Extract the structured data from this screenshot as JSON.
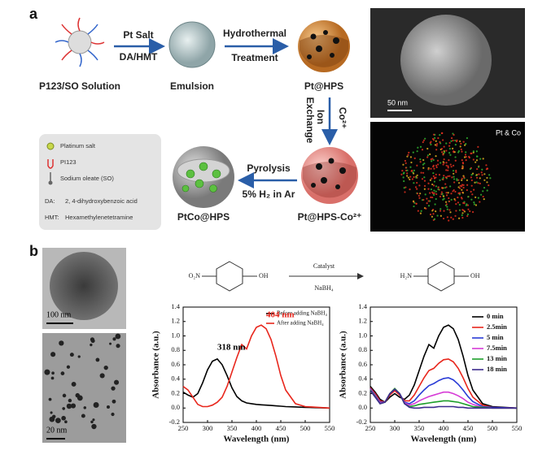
{
  "panel_a": {
    "label": "a",
    "start": "P123/SO Solution",
    "step1_top": "Pt Salt",
    "step1_bottom": "DA/HMT",
    "emulsion": "Emulsion",
    "step2_top": "Hydrothermal",
    "step2_bottom": "Treatment",
    "pt_hps": "Pt@HPS",
    "step3_a": "Ion",
    "step3_b": "Exchange",
    "step3_c": "Co²⁺",
    "pt_hps_co": "Pt@HPS-Co²⁺",
    "step4_top": "Pyrolysis",
    "step4_bottom": "5% H₂ in Ar",
    "ptco_hps": "PtCo@HPS",
    "legend": {
      "platinum": "Platinum salt",
      "p123": "PI123",
      "so": "Sodium oleate (SO)",
      "da_key": "DA:",
      "da": "2, 4-dihydroxybenzoic acid",
      "hmt_key": "HMT:",
      "hmt": "Hexamethylenetetramine"
    },
    "sem_scale": "50 nm",
    "map_label": "Pt & Co"
  },
  "panel_b": {
    "label": "b",
    "tem1_scale": "100 nm",
    "tem2_scale": "20 nm",
    "reaction": {
      "reactant_left": "O₂N",
      "reactant_right": "OH",
      "catalyst": "Catalyst",
      "reagent": "NaBH₄",
      "product_left": "H₂N",
      "product_right": "OH"
    }
  },
  "chart_data": [
    {
      "type": "line",
      "x_label": "Wavelength (nm)",
      "y_label": "Absorbance (a.u.)",
      "x": [
        250,
        260,
        270,
        280,
        290,
        300,
        310,
        320,
        330,
        340,
        350,
        360,
        370,
        380,
        390,
        400,
        410,
        420,
        430,
        440,
        450,
        460,
        480,
        500,
        550
      ],
      "series": [
        {
          "name": "Before adding NaBH₄",
          "color": "#000000",
          "values": [
            0.22,
            0.18,
            0.15,
            0.2,
            0.35,
            0.53,
            0.65,
            0.68,
            0.6,
            0.45,
            0.28,
            0.16,
            0.1,
            0.07,
            0.06,
            0.05,
            0.045,
            0.04,
            0.035,
            0.03,
            0.025,
            0.02,
            0.015,
            0.01,
            0.0
          ]
        },
        {
          "name": "After adding NaBH₄",
          "color": "#e8261c",
          "values": [
            0.3,
            0.25,
            0.15,
            0.05,
            0.02,
            0.02,
            0.04,
            0.08,
            0.15,
            0.3,
            0.5,
            0.7,
            0.88,
            0.82,
            1.0,
            1.12,
            1.15,
            1.1,
            0.95,
            0.72,
            0.45,
            0.25,
            0.06,
            0.02,
            0.0
          ]
        }
      ],
      "annotations": [
        "318 nm",
        "404 nm"
      ],
      "xlim": [
        250,
        550
      ],
      "ylim": [
        -0.2,
        1.4
      ],
      "xticks": [
        250,
        300,
        350,
        400,
        450,
        500,
        550
      ],
      "yticks": [
        -0.2,
        {
          "value": 0,
          "label": "0.0"
        },
        0.2,
        0.4,
        0.6,
        0.8,
        {
          "value": 1,
          "label": "1.0"
        },
        1.2,
        1.4
      ]
    },
    {
      "type": "line",
      "x_label": "Wavelength (nm)",
      "y_label": "Absorbance (a.u.)",
      "x": [
        250,
        260,
        270,
        280,
        290,
        300,
        310,
        320,
        330,
        340,
        350,
        360,
        370,
        380,
        390,
        400,
        410,
        420,
        430,
        440,
        450,
        460,
        480,
        500,
        550
      ],
      "series": [
        {
          "name": "0  min",
          "color": "#000000",
          "values": [
            0.3,
            0.22,
            0.12,
            0.08,
            0.15,
            0.2,
            0.15,
            0.12,
            0.18,
            0.32,
            0.52,
            0.72,
            0.88,
            0.83,
            1.0,
            1.12,
            1.15,
            1.1,
            0.95,
            0.72,
            0.45,
            0.25,
            0.06,
            0.02,
            0.0
          ]
        },
        {
          "name": "2.5min",
          "color": "#e8261c",
          "values": [
            0.28,
            0.2,
            0.1,
            0.08,
            0.18,
            0.24,
            0.18,
            0.1,
            0.1,
            0.18,
            0.3,
            0.42,
            0.52,
            0.55,
            0.62,
            0.67,
            0.68,
            0.64,
            0.55,
            0.42,
            0.27,
            0.15,
            0.04,
            0.01,
            0.0
          ]
        },
        {
          "name": "5  min",
          "color": "#2a3cd6",
          "values": [
            0.27,
            0.18,
            0.08,
            0.08,
            0.2,
            0.26,
            0.2,
            0.08,
            0.06,
            0.1,
            0.18,
            0.25,
            0.31,
            0.34,
            0.38,
            0.41,
            0.42,
            0.39,
            0.33,
            0.25,
            0.16,
            0.09,
            0.02,
            0.01,
            0.0
          ]
        },
        {
          "name": "7.5min",
          "color": "#d63bd6",
          "values": [
            0.26,
            0.17,
            0.07,
            0.08,
            0.2,
            0.27,
            0.2,
            0.07,
            0.04,
            0.06,
            0.1,
            0.13,
            0.16,
            0.18,
            0.2,
            0.22,
            0.22,
            0.2,
            0.17,
            0.13,
            0.08,
            0.05,
            0.01,
            0.0,
            0.0
          ]
        },
        {
          "name": "13 min",
          "color": "#1c9e2a",
          "values": [
            0.25,
            0.16,
            0.06,
            0.08,
            0.2,
            0.27,
            0.2,
            0.06,
            0.02,
            0.03,
            0.05,
            0.06,
            0.07,
            0.08,
            0.09,
            0.1,
            0.1,
            0.09,
            0.08,
            0.06,
            0.04,
            0.02,
            0.01,
            0.0,
            0.0
          ]
        },
        {
          "name": "18 min",
          "color": "#3c2a8e",
          "values": [
            0.24,
            0.15,
            0.06,
            0.08,
            0.2,
            0.26,
            0.2,
            0.06,
            0.01,
            0.0,
            0.0,
            0.01,
            0.01,
            0.01,
            0.02,
            0.02,
            0.02,
            0.02,
            0.01,
            0.01,
            0.0,
            0.0,
            0.0,
            0.0,
            0.0
          ]
        }
      ],
      "xlim": [
        250,
        550
      ],
      "ylim": [
        -0.2,
        1.4
      ],
      "xticks": [
        250,
        300,
        350,
        400,
        450,
        500,
        550
      ],
      "yticks": [
        -0.2,
        {
          "value": 0,
          "label": "0.0"
        },
        0.2,
        0.4,
        0.6,
        0.8,
        {
          "value": 1,
          "label": "1.0"
        },
        1.2,
        1.4
      ]
    }
  ]
}
